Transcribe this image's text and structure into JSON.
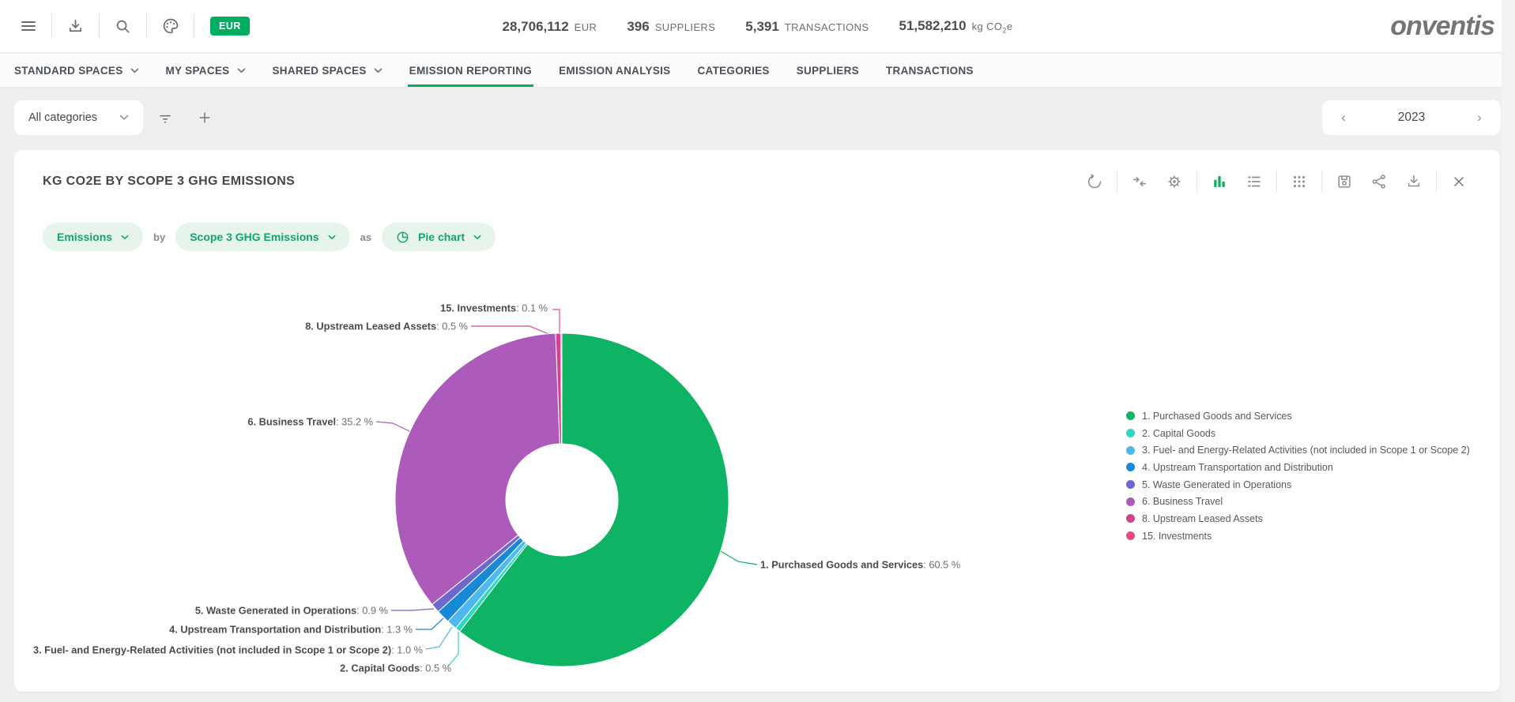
{
  "topbar": {
    "icons": [
      "menu",
      "download",
      "search",
      "palette"
    ],
    "currency_badge": "EUR",
    "stats": {
      "spend": {
        "value": "28,706,112",
        "unit": "EUR"
      },
      "suppliers": {
        "value": "396",
        "unit": "SUPPLIERS"
      },
      "transactions": {
        "value": "5,391",
        "unit": "TRANSACTIONS"
      },
      "emissions": {
        "value": "51,582,210",
        "unit_pre": "kg CO",
        "unit_sub": "2",
        "unit_post": "e"
      }
    },
    "logo": "onventis"
  },
  "nav": {
    "tabs": [
      {
        "label": "STANDARD SPACES",
        "has_dropdown": true,
        "active": false
      },
      {
        "label": "MY SPACES",
        "has_dropdown": true,
        "active": false
      },
      {
        "label": "SHARED SPACES",
        "has_dropdown": true,
        "active": false
      },
      {
        "label": "EMISSION REPORTING",
        "has_dropdown": false,
        "active": true
      },
      {
        "label": "EMISSION ANALYSIS",
        "has_dropdown": false,
        "active": false
      },
      {
        "label": "CATEGORIES",
        "has_dropdown": false,
        "active": false
      },
      {
        "label": "SUPPLIERS",
        "has_dropdown": false,
        "active": false
      },
      {
        "label": "TRANSACTIONS",
        "has_dropdown": false,
        "active": false
      }
    ]
  },
  "filterbar": {
    "category_select": "All categories",
    "icons": [
      "filter",
      "plus"
    ],
    "year": "2023"
  },
  "card": {
    "title": "KG CO2E BY SCOPE 3 GHG EMISSIONS",
    "toolbar_icons": [
      "refresh",
      "collapse",
      "settings",
      "bar-chart",
      "list",
      "grid",
      "save",
      "share",
      "download",
      "close"
    ],
    "query": {
      "measure": "Emissions",
      "by_label": "by",
      "dimension": "Scope 3 GHG Emissions",
      "as_label": "as",
      "chart_type": "Pie chart"
    }
  },
  "chart_data": {
    "type": "pie",
    "title": "KG CO2E BY SCOPE 3 GHG EMISSIONS",
    "donut": true,
    "legend_position": "right",
    "value_suffix": " %",
    "slices": [
      {
        "label": "1. Purchased Goods and Services",
        "value": 60.5,
        "color": "#0FB364"
      },
      {
        "label": "2. Capital Goods",
        "value": 0.5,
        "color": "#2FD8C3"
      },
      {
        "label": "3. Fuel- and Energy-Related Activities (not included in Scope 1 or Scope 2)",
        "value": 1.0,
        "color": "#4FB8EE"
      },
      {
        "label": "4. Upstream Transportation and Distribution",
        "value": 1.3,
        "color": "#1789D6"
      },
      {
        "label": "5. Waste Generated in Operations",
        "value": 0.9,
        "color": "#6C68CE"
      },
      {
        "label": "6. Business Travel",
        "value": 35.2,
        "color": "#AC5BBB"
      },
      {
        "label": "8. Upstream Leased Assets",
        "value": 0.5,
        "color": "#D2438F"
      },
      {
        "label": "15. Investments",
        "value": 0.1,
        "color": "#F2477D"
      }
    ]
  }
}
